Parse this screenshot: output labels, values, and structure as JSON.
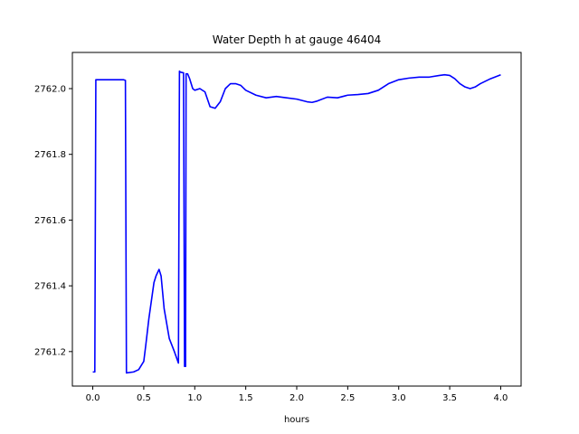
{
  "chart_data": {
    "type": "line",
    "title": "Water Depth h at gauge 46404",
    "xlabel": "hours",
    "ylabel": "",
    "xlim": [
      -0.2,
      4.2
    ],
    "ylim": [
      2761.095,
      2762.11
    ],
    "grid": false,
    "xticks": [
      0.0,
      0.5,
      1.0,
      1.5,
      2.0,
      2.5,
      3.0,
      3.5,
      4.0
    ],
    "xtick_labels": [
      "0.0",
      "0.5",
      "1.0",
      "1.5",
      "2.0",
      "2.5",
      "3.0",
      "3.5",
      "4.0"
    ],
    "yticks": [
      2761.2,
      2761.4,
      2761.6,
      2761.8,
      2762.0
    ],
    "ytick_labels": [
      "2761.2",
      "2761.4",
      "2761.6",
      "2761.8",
      "2762.0"
    ],
    "series": [
      {
        "color": "#0000ff",
        "x": [
          0.0,
          0.02,
          0.03,
          0.1,
          0.2,
          0.3,
          0.32,
          0.33,
          0.4,
          0.45,
          0.5,
          0.52,
          0.55,
          0.6,
          0.62,
          0.65,
          0.67,
          0.7,
          0.75,
          0.8,
          0.84,
          0.85,
          0.86,
          0.89,
          0.9,
          0.91,
          0.915,
          0.93,
          0.95,
          0.98,
          1.0,
          1.05,
          1.1,
          1.15,
          1.2,
          1.25,
          1.3,
          1.35,
          1.4,
          1.45,
          1.5,
          1.6,
          1.7,
          1.8,
          1.9,
          2.0,
          2.1,
          2.15,
          2.2,
          2.3,
          2.4,
          2.5,
          2.6,
          2.7,
          2.8,
          2.9,
          3.0,
          3.1,
          3.2,
          3.3,
          3.4,
          3.45,
          3.5,
          3.55,
          3.6,
          3.65,
          3.7,
          3.75,
          3.8,
          3.9,
          4.0
        ],
        "y": [
          2761.138,
          2761.138,
          2762.027,
          2762.027,
          2762.027,
          2762.027,
          2762.025,
          2761.135,
          2761.138,
          2761.145,
          2761.17,
          2761.22,
          2761.3,
          2761.41,
          2761.43,
          2761.45,
          2761.43,
          2761.33,
          2761.24,
          2761.2,
          2761.165,
          2762.053,
          2762.05,
          2762.048,
          2761.155,
          2761.155,
          2762.045,
          2762.045,
          2762.03,
          2762.0,
          2761.995,
          2762.0,
          2761.99,
          2761.945,
          2761.94,
          2761.96,
          2762.0,
          2762.015,
          2762.015,
          2762.01,
          2761.995,
          2761.98,
          2761.972,
          2761.976,
          2761.972,
          2761.968,
          2761.96,
          2761.958,
          2761.962,
          2761.974,
          2761.972,
          2761.98,
          2761.982,
          2761.985,
          2761.995,
          2762.015,
          2762.027,
          2762.032,
          2762.035,
          2762.035,
          2762.04,
          2762.042,
          2762.04,
          2762.03,
          2762.015,
          2762.005,
          2762.0,
          2762.005,
          2762.015,
          2762.03,
          2762.042
        ]
      }
    ]
  }
}
